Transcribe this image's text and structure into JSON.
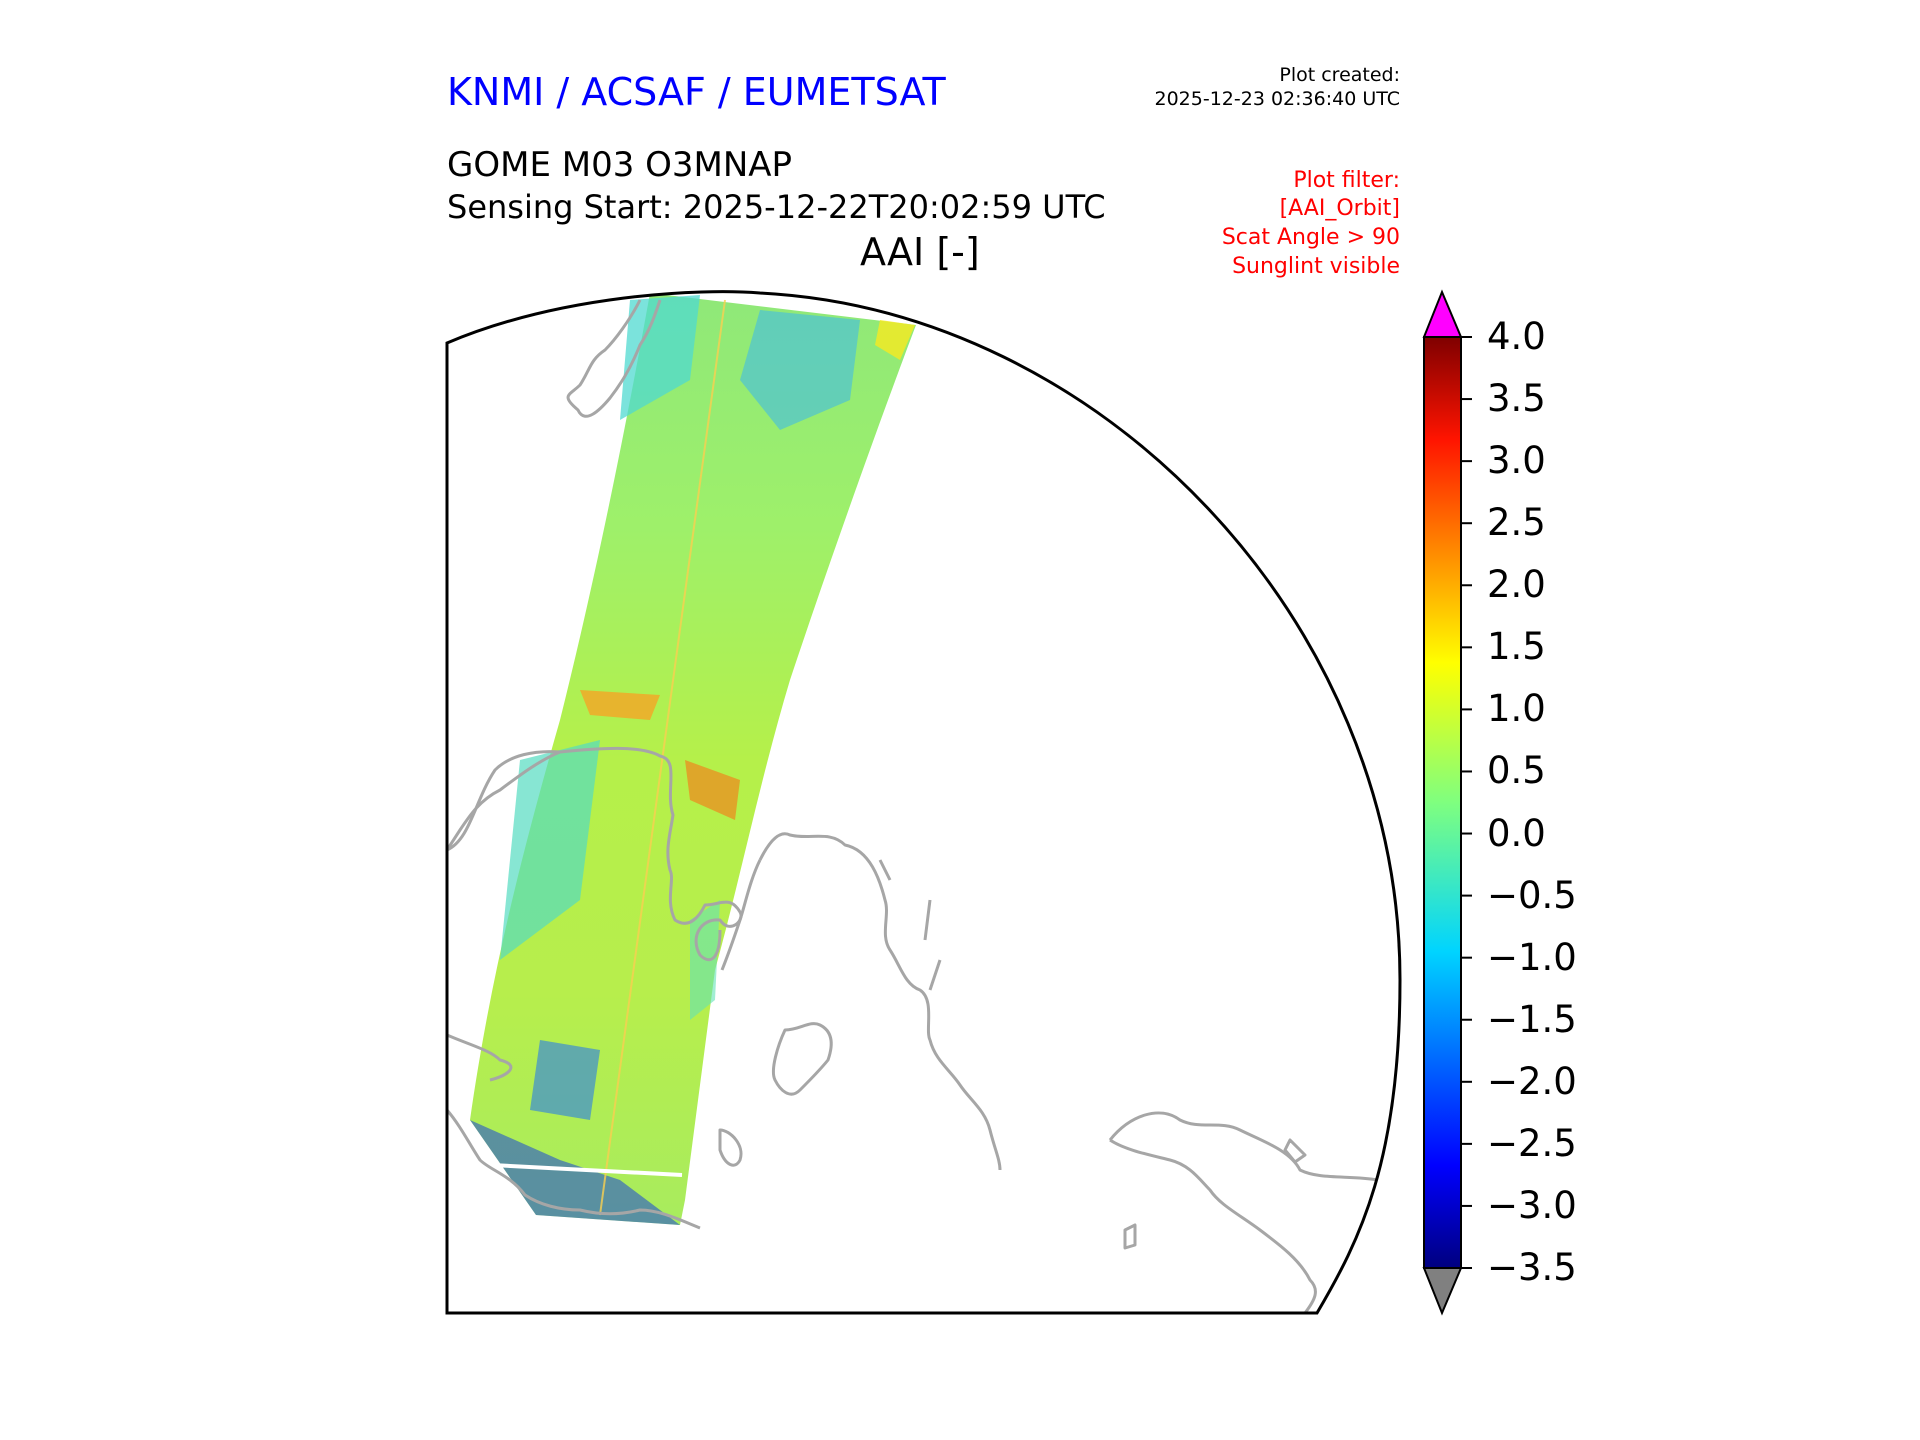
{
  "header": {
    "organization": "KNMI / ACSAF / EUMETSAT",
    "plot_created_label": "Plot created:",
    "plot_created_time": "2025-12-23 02:36:40 UTC",
    "product": "GOME M03 O3MNAP",
    "sensing_start": "Sensing Start: 2025-12-22T20:02:59 UTC",
    "variable": "AAI [-]"
  },
  "filter": {
    "title": "Plot filter:",
    "lines": [
      "[AAI_Orbit]",
      "Scat Angle > 90",
      "Sunglint visible"
    ]
  },
  "colorbar": {
    "ticks": [
      "4.0",
      "3.5",
      "3.0",
      "2.5",
      "2.0",
      "1.5",
      "1.0",
      "0.5",
      "0.0",
      "−0.5",
      "−1.0",
      "−1.5",
      "−2.0",
      "−2.5",
      "−3.0",
      "−3.5"
    ],
    "min": -3.5,
    "max": 4.0,
    "over_color": "#ff00ff",
    "under_color": "#808080",
    "colormap": "jet"
  },
  "map": {
    "coastline_color": "#a6a6a6",
    "border_color": "#000000"
  }
}
